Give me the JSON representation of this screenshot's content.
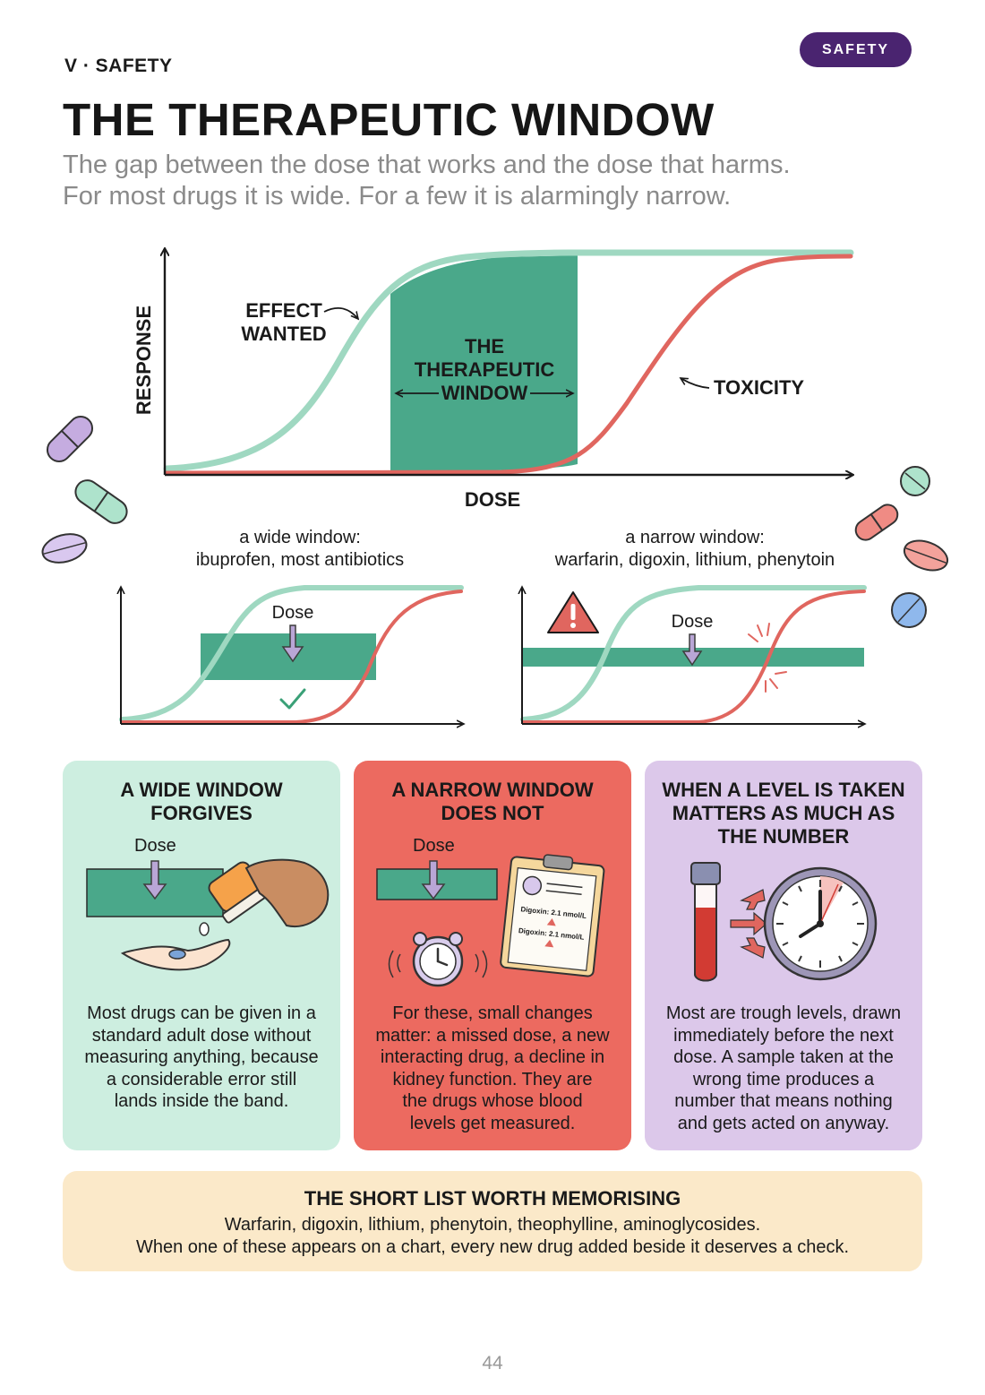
{
  "header": {
    "section_label": "V · SAFETY",
    "badge": "SAFETY",
    "title": "THE THERAPEUTIC WINDOW",
    "subtitle_line1": "The gap between the dose that works and the dose that harms.",
    "subtitle_line2": "For most drugs it is wide. For a few it is alarmingly narrow."
  },
  "main_chart": {
    "y_axis_label": "RESPONSE",
    "x_axis_label": "DOSE",
    "effect_label_line1": "EFFECT",
    "effect_label_line2": "WANTED",
    "window_label_line1": "THE",
    "window_label_line2": "THERAPEUTIC",
    "window_label_line3": "WINDOW",
    "toxicity_label": "TOXICITY",
    "colors": {
      "effect": "#9fd8c1",
      "toxicity": "#e0665f",
      "window": "#4aa88a"
    }
  },
  "small_charts": {
    "wide": {
      "caption_line1": "a wide window:",
      "caption_line2": "ibuprofen, most antibiotics",
      "dose_label": "Dose"
    },
    "narrow": {
      "caption_line1": "a narrow window:",
      "caption_line2": "warfarin, digoxin, lithium, phenytoin",
      "dose_label": "Dose"
    }
  },
  "cards": [
    {
      "title_line1": "A WIDE WINDOW",
      "title_line2": "FORGIVES",
      "dose_label": "Dose",
      "body_lines": [
        "Most drugs can be given in a",
        "standard adult dose without",
        "measuring anything, because",
        "a considerable error still",
        "lands inside the band."
      ],
      "color": "#cdeee0"
    },
    {
      "title_line1": "A NARROW WINDOW",
      "title_line2": "DOES NOT",
      "dose_label": "Dose",
      "clipboard_line1": "Digoxin: 2.1 nmol/L",
      "clipboard_line2": "Digoxin: 2.1 nmol/L",
      "body_lines": [
        "For these, small changes",
        "matter: a missed dose, a new",
        "interacting drug, a decline in",
        "kidney function. They are",
        "the drugs whose blood",
        "levels get measured."
      ],
      "color": "#ec6a60"
    },
    {
      "title_line1": "WHEN A LEVEL IS TAKEN",
      "title_line2": "MATTERS AS MUCH AS",
      "title_line3": "THE NUMBER",
      "body_lines": [
        "Most are trough levels, drawn",
        "immediately before the next",
        "dose. A sample taken at the",
        "wrong time produces a",
        "number that means nothing",
        "and gets acted on anyway."
      ],
      "color": "#dcc8ea"
    }
  ],
  "callout": {
    "title": "THE SHORT LIST WORTH MEMORISING",
    "line1": "Warfarin, digoxin, lithium, phenytoin, theophylline, aminoglycosides.",
    "line2": "When one of these appears on a chart, every new drug added beside it deserves a check."
  },
  "page_number": "44"
}
